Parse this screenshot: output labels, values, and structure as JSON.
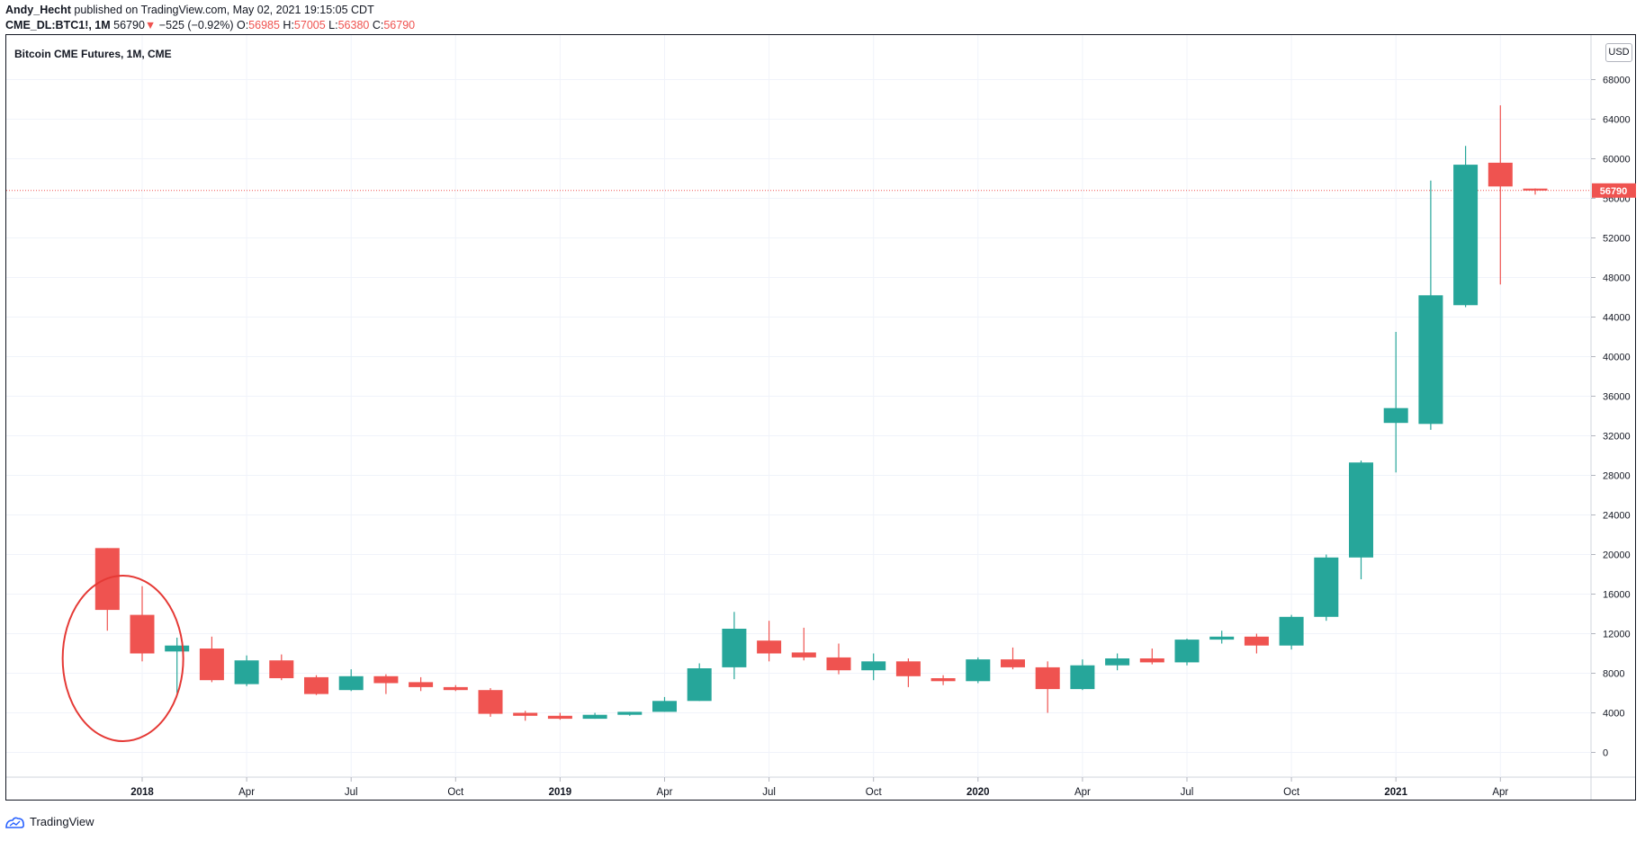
{
  "header": {
    "author": "Andy_Hecht",
    "published_text": " published on TradingView.com, May 02, 2021 19:15:05 CDT",
    "symbol": "CME_DL:BTC1!, 1M",
    "last": "56790",
    "change": "−525 (−0.92%)",
    "o_label": "O:",
    "o_value": "56985",
    "h_label": "H:",
    "h_value": "57005",
    "l_label": "L:",
    "l_value": "56380",
    "c_label": "C:",
    "c_value": "56790"
  },
  "chart_title": "Bitcoin CME Futures, 1M, CME",
  "currency": "USD",
  "footer": {
    "brand": "TradingView"
  },
  "colors": {
    "up": "#26a69a",
    "down": "#ef5350",
    "grid": "#f0f3fa",
    "annotation": "#e53935"
  },
  "annotation": {
    "type": "ellipse",
    "around": [
      "2017-12",
      "2018-01"
    ]
  },
  "chart_data": {
    "type": "candlestick",
    "title": "Bitcoin CME Futures, 1M, CME",
    "ylabel": "USD",
    "ylim": [
      -2500,
      72500
    ],
    "y_ticks": [
      0,
      4000,
      8000,
      12000,
      16000,
      20000,
      24000,
      28000,
      32000,
      36000,
      40000,
      44000,
      48000,
      52000,
      56000,
      60000,
      64000,
      68000
    ],
    "x_ticks": [
      {
        "label": "2018",
        "date": "2018-01",
        "bold": true
      },
      {
        "label": "Apr",
        "date": "2018-04"
      },
      {
        "label": "Jul",
        "date": "2018-07"
      },
      {
        "label": "Oct",
        "date": "2018-10"
      },
      {
        "label": "2019",
        "date": "2019-01",
        "bold": true
      },
      {
        "label": "Apr",
        "date": "2019-04"
      },
      {
        "label": "Jul",
        "date": "2019-07"
      },
      {
        "label": "Oct",
        "date": "2019-10"
      },
      {
        "label": "2020",
        "date": "2020-01",
        "bold": true
      },
      {
        "label": "Apr",
        "date": "2020-04"
      },
      {
        "label": "Jul",
        "date": "2020-07"
      },
      {
        "label": "Oct",
        "date": "2020-10"
      },
      {
        "label": "2021",
        "date": "2021-01",
        "bold": true
      },
      {
        "label": "Apr",
        "date": "2021-04"
      }
    ],
    "last_price": 56790,
    "candles": [
      {
        "date": "2017-12",
        "open": 20650,
        "high": 20650,
        "low": 12300,
        "close": 14400
      },
      {
        "date": "2018-01",
        "open": 13900,
        "high": 16800,
        "low": 9200,
        "close": 10000
      },
      {
        "date": "2018-02",
        "open": 10200,
        "high": 11600,
        "low": 6000,
        "close": 10800
      },
      {
        "date": "2018-03",
        "open": 10500,
        "high": 11700,
        "low": 7100,
        "close": 7300
      },
      {
        "date": "2018-04",
        "open": 6900,
        "high": 9800,
        "low": 6700,
        "close": 9300
      },
      {
        "date": "2018-05",
        "open": 9300,
        "high": 9900,
        "low": 7300,
        "close": 7500
      },
      {
        "date": "2018-06",
        "open": 7600,
        "high": 7800,
        "low": 5800,
        "close": 5900
      },
      {
        "date": "2018-07",
        "open": 6300,
        "high": 8400,
        "low": 6200,
        "close": 7700
      },
      {
        "date": "2018-08",
        "open": 7700,
        "high": 7900,
        "low": 5900,
        "close": 7000
      },
      {
        "date": "2018-09",
        "open": 7100,
        "high": 7600,
        "low": 6200,
        "close": 6600
      },
      {
        "date": "2018-10",
        "open": 6600,
        "high": 6800,
        "low": 6200,
        "close": 6300
      },
      {
        "date": "2018-11",
        "open": 6300,
        "high": 6500,
        "low": 3600,
        "close": 3900
      },
      {
        "date": "2018-12",
        "open": 4000,
        "high": 4200,
        "low": 3200,
        "close": 3700
      },
      {
        "date": "2019-01",
        "open": 3700,
        "high": 4000,
        "low": 3300,
        "close": 3400
      },
      {
        "date": "2019-02",
        "open": 3400,
        "high": 4000,
        "low": 3400,
        "close": 3800
      },
      {
        "date": "2019-03",
        "open": 3800,
        "high": 4100,
        "low": 3700,
        "close": 4100
      },
      {
        "date": "2019-04",
        "open": 4100,
        "high": 5600,
        "low": 4100,
        "close": 5200
      },
      {
        "date": "2019-05",
        "open": 5200,
        "high": 9000,
        "low": 5200,
        "close": 8500
      },
      {
        "date": "2019-06",
        "open": 8600,
        "high": 14200,
        "low": 7400,
        "close": 12500
      },
      {
        "date": "2019-07",
        "open": 11300,
        "high": 13300,
        "low": 9200,
        "close": 10000
      },
      {
        "date": "2019-08",
        "open": 10100,
        "high": 12600,
        "low": 9300,
        "close": 9600
      },
      {
        "date": "2019-09",
        "open": 9600,
        "high": 11000,
        "low": 7900,
        "close": 8300
      },
      {
        "date": "2019-10",
        "open": 8300,
        "high": 10000,
        "low": 7300,
        "close": 9200
      },
      {
        "date": "2019-11",
        "open": 9200,
        "high": 9500,
        "low": 6600,
        "close": 7700
      },
      {
        "date": "2019-12",
        "open": 7500,
        "high": 7800,
        "low": 6800,
        "close": 7200
      },
      {
        "date": "2020-01",
        "open": 7200,
        "high": 9600,
        "low": 7000,
        "close": 9400
      },
      {
        "date": "2020-02",
        "open": 9400,
        "high": 10600,
        "low": 8400,
        "close": 8600
      },
      {
        "date": "2020-03",
        "open": 8600,
        "high": 9200,
        "low": 4000,
        "close": 6400
      },
      {
        "date": "2020-04",
        "open": 6400,
        "high": 9400,
        "low": 6300,
        "close": 8800
      },
      {
        "date": "2020-05",
        "open": 8800,
        "high": 10000,
        "low": 8300,
        "close": 9500
      },
      {
        "date": "2020-06",
        "open": 9500,
        "high": 10500,
        "low": 8900,
        "close": 9100
      },
      {
        "date": "2020-07",
        "open": 9100,
        "high": 11500,
        "low": 8800,
        "close": 11400
      },
      {
        "date": "2020-08",
        "open": 11400,
        "high": 12300,
        "low": 11000,
        "close": 11700
      },
      {
        "date": "2020-09",
        "open": 11700,
        "high": 12000,
        "low": 10000,
        "close": 10800
      },
      {
        "date": "2020-10",
        "open": 10800,
        "high": 13900,
        "low": 10400,
        "close": 13700
      },
      {
        "date": "2020-11",
        "open": 13700,
        "high": 20000,
        "low": 13300,
        "close": 19700
      },
      {
        "date": "2020-12",
        "open": 19700,
        "high": 29500,
        "low": 17500,
        "close": 29300
      },
      {
        "date": "2021-01",
        "open": 33300,
        "high": 42500,
        "low": 28300,
        "close": 34800
      },
      {
        "date": "2021-02",
        "open": 33200,
        "high": 57800,
        "low": 32600,
        "close": 46200
      },
      {
        "date": "2021-03",
        "open": 45200,
        "high": 61300,
        "low": 45000,
        "close": 59400
      },
      {
        "date": "2021-04",
        "open": 59600,
        "high": 65400,
        "low": 47300,
        "close": 57200
      },
      {
        "date": "2021-05",
        "open": 56985,
        "high": 57005,
        "low": 56380,
        "close": 56790
      }
    ]
  }
}
